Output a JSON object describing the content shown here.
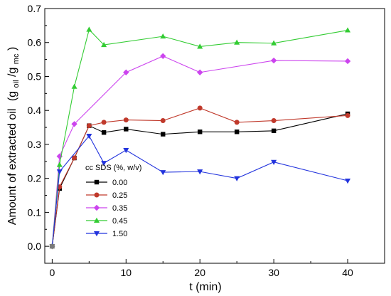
{
  "chart_data": {
    "type": "line",
    "xlabel": "t (min)",
    "ylabel": "Amount of extracted oil",
    "ylabel_unit": "(g",
    "ylabel_sub1": "oil",
    "ylabel_mid": "/g",
    "ylabel_sub2": "mc",
    "ylabel_end": ")",
    "xlim": [
      -1,
      45
    ],
    "ylim": [
      -0.05,
      0.7
    ],
    "xticks": [
      0,
      10,
      20,
      30,
      40
    ],
    "yticks": [
      0.0,
      0.1,
      0.2,
      0.3,
      0.4,
      0.5,
      0.6,
      0.7
    ],
    "legend_title": "cc SDS (%, w/v)",
    "legend_position": "lower-left",
    "series": [
      {
        "name": "0.00",
        "color": "#000000",
        "marker": "square",
        "x": [
          0,
          1,
          3,
          5,
          7,
          10,
          15,
          20,
          25,
          30,
          40
        ],
        "y": [
          0.0,
          0.17,
          0.26,
          0.355,
          0.335,
          0.345,
          0.33,
          0.337,
          0.337,
          0.34,
          0.39
        ]
      },
      {
        "name": "0.25",
        "color": "#c0392b",
        "marker": "circle",
        "x": [
          0,
          1,
          3,
          5,
          7,
          10,
          15,
          20,
          25,
          30,
          40
        ],
        "y": [
          0.0,
          0.175,
          0.26,
          0.355,
          0.365,
          0.372,
          0.37,
          0.407,
          0.365,
          0.37,
          0.385
        ]
      },
      {
        "name": "0.35",
        "color": "#cc44ee",
        "marker": "diamond",
        "x": [
          0,
          1,
          3,
          10,
          15,
          20,
          30,
          40
        ],
        "y": [
          0.0,
          0.265,
          0.36,
          0.512,
          0.56,
          0.512,
          0.547,
          0.545
        ]
      },
      {
        "name": "0.45",
        "color": "#33cc33",
        "marker": "triangle-up",
        "x": [
          0,
          1,
          3,
          5,
          7,
          15,
          20,
          25,
          30,
          40
        ],
        "y": [
          0.0,
          0.24,
          0.47,
          0.638,
          0.593,
          0.618,
          0.588,
          0.6,
          0.598,
          0.636
        ]
      },
      {
        "name": "1.50",
        "color": "#2233dd",
        "marker": "triangle-down",
        "x": [
          0,
          1,
          5,
          7,
          10,
          15,
          20,
          25,
          30,
          40
        ],
        "y": [
          0.0,
          0.22,
          0.325,
          0.245,
          0.283,
          0.218,
          0.22,
          0.2,
          0.248,
          0.193
        ]
      }
    ]
  }
}
